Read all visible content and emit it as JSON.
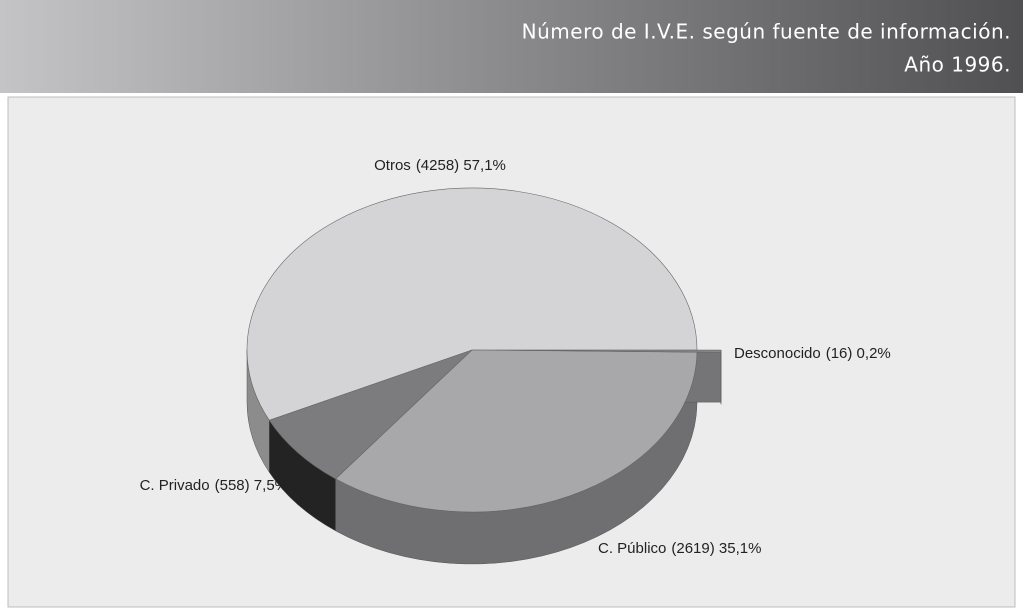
{
  "chart_data": {
    "type": "pie3d",
    "title": [
      "Número de I.V.E. según fuente de información.",
      "Año 1996."
    ],
    "categories": [
      "Otros",
      "C. Privado",
      "C. Público",
      "Desconocido"
    ],
    "values": [
      4258,
      558,
      2619,
      16
    ],
    "value_labels": [
      "(4258) 57,1%",
      "(558) 7,5%",
      "(2619) 35,1%",
      "(16) 0,2%"
    ],
    "colors": [
      "#d4d4d6",
      "#7c7c7e",
      "#a8a8ab",
      "#8a8a8c"
    ],
    "exploded": [
      false,
      false,
      false,
      true
    ]
  }
}
